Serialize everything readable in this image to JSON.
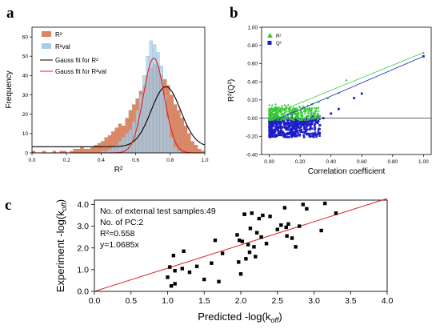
{
  "chart_data": [
    {
      "panel": "a",
      "type": "bar",
      "xlabel": "R²",
      "ylabel": "Frequency",
      "xlim": [
        0.0,
        1.0
      ],
      "ylim": [
        0,
        65
      ],
      "x_ticks": [
        "0.0",
        "0.2",
        "0.4",
        "0.6",
        "0.8",
        "1.0"
      ],
      "y_ticks": [
        "0",
        "10",
        "20",
        "30",
        "40",
        "50",
        "60"
      ],
      "legend_position": "top-left",
      "legend": [
        {
          "label": "R²",
          "color": "#d9835f",
          "kind": "bar"
        },
        {
          "label": "R²val",
          "color": "#a7cde8",
          "kind": "bar"
        },
        {
          "label": "Gauss fit for R²",
          "color": "#000000",
          "kind": "line"
        },
        {
          "label": "Gauss fit for R²val",
          "color": "#e02020",
          "kind": "line"
        }
      ],
      "series": [
        {
          "name": "R²",
          "color": "#d9835f",
          "bin_centers": [
            0.01,
            0.03,
            0.05,
            0.07,
            0.09,
            0.11,
            0.13,
            0.15,
            0.17,
            0.19,
            0.21,
            0.23,
            0.25,
            0.27,
            0.29,
            0.31,
            0.33,
            0.35,
            0.37,
            0.39,
            0.41,
            0.43,
            0.45,
            0.47,
            0.49,
            0.51,
            0.53,
            0.55,
            0.57,
            0.59,
            0.61,
            0.63,
            0.65,
            0.67,
            0.69,
            0.71,
            0.73,
            0.75,
            0.77,
            0.79,
            0.81,
            0.83,
            0.85,
            0.87,
            0.89,
            0.91,
            0.93,
            0.95,
            0.97,
            0.99
          ],
          "counts": [
            1,
            0,
            0,
            1,
            0,
            0,
            1,
            0,
            1,
            1,
            0,
            1,
            2,
            2,
            3,
            2,
            2,
            3,
            4,
            5,
            6,
            8,
            9,
            11,
            13,
            15,
            14,
            18,
            22,
            25,
            28,
            32,
            35,
            40,
            44,
            46,
            45,
            40,
            38,
            35,
            30,
            25,
            22,
            18,
            14,
            10,
            6,
            4,
            2,
            1
          ]
        },
        {
          "name": "R²val",
          "color": "#a7cde8",
          "bin_centers": [
            0.41,
            0.43,
            0.45,
            0.47,
            0.49,
            0.51,
            0.53,
            0.55,
            0.57,
            0.59,
            0.61,
            0.63,
            0.65,
            0.67,
            0.69,
            0.71,
            0.73,
            0.75,
            0.77,
            0.79,
            0.81,
            0.83,
            0.85
          ],
          "counts": [
            1,
            1,
            2,
            3,
            4,
            6,
            8,
            10,
            12,
            16,
            22,
            30,
            40,
            50,
            58,
            56,
            52,
            45,
            30,
            18,
            8,
            3,
            1
          ]
        },
        {
          "name": "Gauss fit for R²",
          "color": "#000000",
          "type": "line",
          "function": "gauss",
          "y0": 3.2,
          "amplitude": 31,
          "center": 0.775,
          "sigma": 0.085
        },
        {
          "name": "Gauss fit for R²val",
          "color": "#e02020",
          "type": "line",
          "function": "gauss",
          "y0": 0.0,
          "amplitude": 49,
          "center": 0.705,
          "sigma": 0.06
        }
      ]
    },
    {
      "panel": "b",
      "type": "scatter",
      "xlabel": "Correlation coefficient",
      "ylabel": "R²(Q²)",
      "xlim": [
        -0.05,
        1.05
      ],
      "ylim": [
        -0.4,
        1.0
      ],
      "x_ticks": [
        "0.00",
        "0.20",
        "0.40",
        "0.60",
        "0.80",
        "1.00"
      ],
      "y_ticks": [
        "-0.40",
        "-0.20",
        "0.00",
        "0.20",
        "0.40",
        "0.60",
        "0.80",
        "1.00"
      ],
      "legend_position": "top-left",
      "legend": [
        {
          "label": "R²",
          "color": "#32c832",
          "marker": "triangle"
        },
        {
          "label": "Q²",
          "color": "#1e1ec8",
          "marker": "square"
        }
      ],
      "series": [
        {
          "name": "R²",
          "color": "#32c832",
          "marker": "triangle",
          "x": [
            0.0,
            1.0,
            0.5,
            0.45,
            0.38,
            0.32,
            0.28,
            0.25,
            0.22,
            0.2
          ],
          "y": [
            0.05,
            0.72,
            0.42,
            0.28,
            0.22,
            0.18,
            0.16,
            0.14,
            0.13,
            0.12
          ],
          "trend": {
            "x": [
              0.0,
              1.0
            ],
            "y": [
              0.03,
              0.72
            ]
          }
        },
        {
          "name": "Q²",
          "color": "#1e1ec8",
          "marker": "square",
          "x": [
            0.0,
            1.0,
            0.6,
            0.55,
            0.45,
            0.4,
            0.35,
            0.3
          ],
          "y": [
            -0.1,
            0.68,
            0.27,
            0.22,
            0.1,
            0.05,
            0.0,
            -0.02
          ],
          "trend": {
            "x": [
              0.0,
              1.0
            ],
            "y": [
              -0.05,
              0.68
            ]
          }
        }
      ]
    },
    {
      "panel": "c",
      "type": "scatter",
      "xlabel": "Predicted -log(k",
      "xlabel_sub": "off",
      "ylabel": "Experiment -log(k",
      "ylabel_sub": "off",
      "xlim": [
        0.0,
        4.0
      ],
      "ylim": [
        0.0,
        4.2
      ],
      "x_ticks": [
        "0.0",
        "0.5",
        "1.0",
        "1.5",
        "2.0",
        "2.5",
        "3.0",
        "3.5",
        "4.0"
      ],
      "y_ticks": [
        "0.0",
        "1.0",
        "2.0",
        "3.0",
        "4.0"
      ],
      "annotations": [
        "No. of external test samples:49",
        "No. of PC:2",
        "R²=0.558",
        "y=1.0685x"
      ],
      "fit_line": {
        "slope": 1.0685,
        "intercept": 0,
        "color": "#e02020"
      },
      "series": [
        {
          "name": "",
          "color": "#000000",
          "marker": "square",
          "x": [
            1.0,
            1.03,
            1.05,
            1.08,
            1.1,
            1.2,
            1.22,
            1.3,
            1.4,
            1.5,
            1.6,
            1.65,
            1.7,
            1.75,
            1.95,
            1.97,
            2.0,
            2.02,
            2.05,
            2.07,
            2.1,
            2.12,
            2.13,
            2.15,
            2.18,
            2.2,
            2.22,
            2.25,
            2.28,
            2.3,
            2.35,
            2.4,
            2.5,
            2.55,
            2.6,
            2.62,
            2.63,
            2.65,
            2.7,
            2.75,
            2.8,
            2.85,
            2.9,
            3.1,
            3.15,
            3.3,
            2.05,
            1.98,
            1.1
          ],
          "y": [
            0.65,
            1.12,
            0.25,
            1.65,
            0.95,
            1.05,
            1.85,
            0.88,
            1.15,
            0.55,
            1.3,
            2.35,
            0.45,
            1.75,
            2.6,
            1.35,
            0.8,
            2.3,
            3.55,
            1.5,
            2.15,
            1.8,
            2.9,
            3.6,
            2.05,
            1.6,
            2.7,
            3.35,
            2.5,
            3.5,
            2.2,
            3.45,
            2.85,
            3.05,
            3.85,
            2.95,
            2.55,
            3.1,
            2.45,
            2.05,
            3.0,
            4.0,
            3.8,
            2.8,
            4.05,
            3.6,
            3.55,
            2.35,
            0.35
          ]
        }
      ]
    }
  ]
}
